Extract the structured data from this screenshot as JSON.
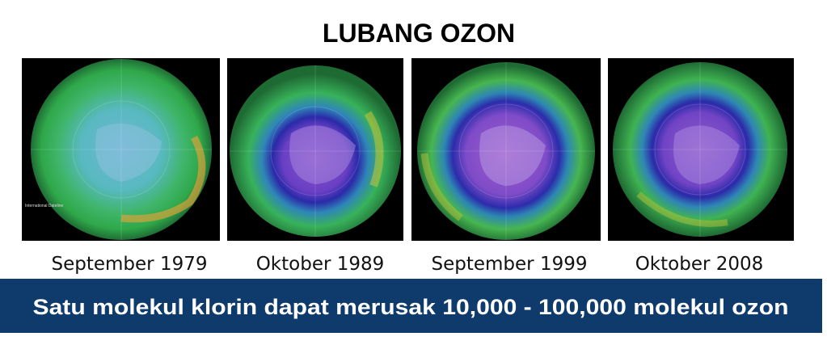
{
  "title": "LUBANG OZON",
  "images": [
    {
      "caption": "September 1979",
      "note": "International Dateline"
    },
    {
      "caption": "Oktober 1989"
    },
    {
      "caption": "September 1999"
    },
    {
      "caption": "Oktober 2008"
    }
  ],
  "banner": "Satu molekul klorin dapat merusak 10,000 - 100,000 molekul ozon"
}
